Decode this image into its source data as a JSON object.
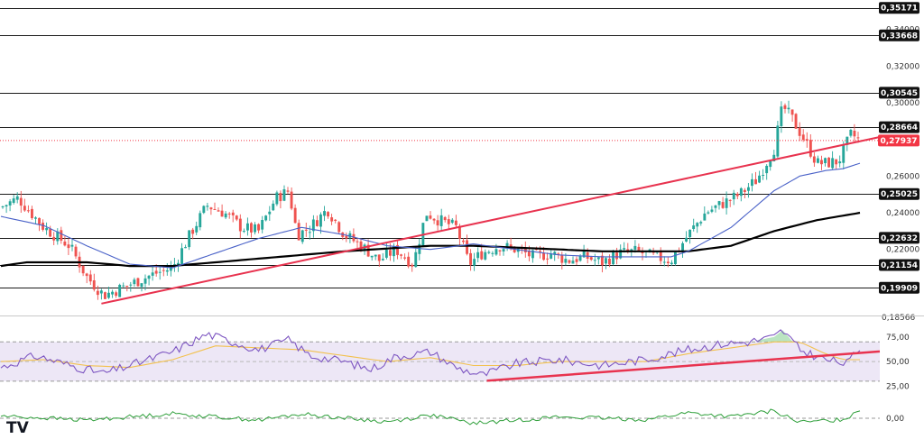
{
  "colors": {
    "bull": "#26a69a",
    "bear": "#ef5350",
    "ma_short": "#4a62c8",
    "ma_long": "#000000",
    "trendline": "#e8334f",
    "level_line": "#1a1a1a",
    "level_label_bg": "#111111",
    "current_price_bg": "#f23645",
    "rsi_line": "#7e57c2",
    "rsi_signal": "#f2c14e",
    "rsi_band": "#ede7f6",
    "momentum_line": "#2e9f3a"
  },
  "logo": {
    "icon": "tradingview-logo-icon",
    "text": "TV"
  },
  "chart_data": [
    {
      "type": "candlestick",
      "panel": "price",
      "ylim": [
        0.184,
        0.356
      ],
      "y_ticks": [
        "0,34000",
        "0,32000",
        "0,30000",
        "0,26000",
        "0,24000",
        "0,22000"
      ],
      "y_tick_values": [
        0.34,
        0.32,
        0.3,
        0.26,
        0.24,
        0.22
      ],
      "levels": [
        {
          "value": 0.35171,
          "label": "0,35171"
        },
        {
          "value": 0.33668,
          "label": "0,33668"
        },
        {
          "value": 0.30545,
          "label": "0,30545"
        },
        {
          "value": 0.28664,
          "label": "0,28664"
        },
        {
          "value": 0.25025,
          "label": "0,25025"
        },
        {
          "value": 0.22632,
          "label": "0,22632"
        },
        {
          "value": 0.21154,
          "label": "0,21154"
        },
        {
          "value": 0.19909,
          "label": "0,19909"
        }
      ],
      "partial_bottom_label": "0,18566",
      "current_price": {
        "value": 0.27937,
        "label": "0,27937"
      },
      "trendline": {
        "from": [
          0.117,
          0.1905
        ],
        "to": [
          1.0,
          0.279
        ]
      },
      "path_anchors": [
        [
          0,
          0.243
        ],
        [
          0.02,
          0.248
        ],
        [
          0.05,
          0.232
        ],
        [
          0.08,
          0.222
        ],
        [
          0.1,
          0.205
        ],
        [
          0.12,
          0.195
        ],
        [
          0.135,
          0.198
        ],
        [
          0.16,
          0.203
        ],
        [
          0.18,
          0.207
        ],
        [
          0.2,
          0.21
        ],
        [
          0.22,
          0.228
        ],
        [
          0.24,
          0.244
        ],
        [
          0.26,
          0.24
        ],
        [
          0.28,
          0.232
        ],
        [
          0.3,
          0.23
        ],
        [
          0.32,
          0.248
        ],
        [
          0.335,
          0.252
        ],
        [
          0.345,
          0.228
        ],
        [
          0.36,
          0.232
        ],
        [
          0.38,
          0.242
        ],
        [
          0.4,
          0.228
        ],
        [
          0.42,
          0.222
        ],
        [
          0.44,
          0.214
        ],
        [
          0.46,
          0.22
        ],
        [
          0.48,
          0.212
        ],
        [
          0.495,
          0.24
        ],
        [
          0.51,
          0.236
        ],
        [
          0.53,
          0.232
        ],
        [
          0.545,
          0.212
        ],
        [
          0.56,
          0.218
        ],
        [
          0.58,
          0.222
        ],
        [
          0.6,
          0.22
        ],
        [
          0.62,
          0.216
        ],
        [
          0.64,
          0.218
        ],
        [
          0.66,
          0.214
        ],
        [
          0.68,
          0.216
        ],
        [
          0.7,
          0.213
        ],
        [
          0.72,
          0.218
        ],
        [
          0.74,
          0.219
        ],
        [
          0.76,
          0.216
        ],
        [
          0.78,
          0.214
        ],
        [
          0.8,
          0.228
        ],
        [
          0.82,
          0.24
        ],
        [
          0.84,
          0.245
        ],
        [
          0.86,
          0.25
        ],
        [
          0.88,
          0.258
        ],
        [
          0.9,
          0.275
        ],
        [
          0.91,
          0.298
        ],
        [
          0.92,
          0.292
        ],
        [
          0.935,
          0.28
        ],
        [
          0.95,
          0.267
        ],
        [
          0.96,
          0.267
        ],
        [
          0.975,
          0.268
        ],
        [
          0.99,
          0.283
        ],
        [
          1.0,
          0.279
        ]
      ],
      "ma_short_anchors": [
        [
          0,
          0.238
        ],
        [
          0.05,
          0.233
        ],
        [
          0.1,
          0.222
        ],
        [
          0.15,
          0.212
        ],
        [
          0.2,
          0.21
        ],
        [
          0.25,
          0.218
        ],
        [
          0.3,
          0.226
        ],
        [
          0.35,
          0.232
        ],
        [
          0.4,
          0.228
        ],
        [
          0.45,
          0.222
        ],
        [
          0.5,
          0.22
        ],
        [
          0.55,
          0.223
        ],
        [
          0.6,
          0.22
        ],
        [
          0.65,
          0.217
        ],
        [
          0.7,
          0.216
        ],
        [
          0.75,
          0.216
        ],
        [
          0.78,
          0.216
        ],
        [
          0.8,
          0.219
        ],
        [
          0.85,
          0.232
        ],
        [
          0.9,
          0.252
        ],
        [
          0.93,
          0.26
        ],
        [
          0.96,
          0.263
        ],
        [
          0.98,
          0.264
        ],
        [
          1.0,
          0.267
        ]
      ],
      "ma_long_anchors": [
        [
          0,
          0.211
        ],
        [
          0.03,
          0.213
        ],
        [
          0.1,
          0.213
        ],
        [
          0.15,
          0.211
        ],
        [
          0.2,
          0.211
        ],
        [
          0.3,
          0.215
        ],
        [
          0.4,
          0.219
        ],
        [
          0.5,
          0.222
        ],
        [
          0.55,
          0.222
        ],
        [
          0.6,
          0.221
        ],
        [
          0.65,
          0.22
        ],
        [
          0.7,
          0.219
        ],
        [
          0.75,
          0.219
        ],
        [
          0.8,
          0.219
        ],
        [
          0.85,
          0.222
        ],
        [
          0.9,
          0.23
        ],
        [
          0.95,
          0.236
        ],
        [
          1.0,
          0.24
        ]
      ],
      "candle_count": 235
    },
    {
      "type": "line",
      "panel": "rsi",
      "ylim": [
        18,
        85
      ],
      "y_ticks": [
        "75,00",
        "50,00",
        "25,00"
      ],
      "y_tick_values": [
        75,
        50,
        25
      ],
      "band": [
        30,
        70
      ],
      "trendline": {
        "from": [
          0.5656,
          30.5
        ],
        "to": [
          1.0,
          58.8
        ]
      },
      "rsi_anchors": [
        [
          0,
          44
        ],
        [
          0.04,
          56
        ],
        [
          0.09,
          44
        ],
        [
          0.12,
          38
        ],
        [
          0.15,
          46
        ],
        [
          0.2,
          60
        ],
        [
          0.24,
          78
        ],
        [
          0.27,
          70
        ],
        [
          0.3,
          62
        ],
        [
          0.335,
          72
        ],
        [
          0.36,
          56
        ],
        [
          0.4,
          50
        ],
        [
          0.43,
          42
        ],
        [
          0.46,
          55
        ],
        [
          0.5,
          60
        ],
        [
          0.53,
          44
        ],
        [
          0.56,
          36
        ],
        [
          0.6,
          48
        ],
        [
          0.65,
          52
        ],
        [
          0.7,
          46
        ],
        [
          0.75,
          52
        ],
        [
          0.8,
          62
        ],
        [
          0.84,
          68
        ],
        [
          0.87,
          70
        ],
        [
          0.9,
          75
        ],
        [
          0.91,
          82
        ],
        [
          0.93,
          62
        ],
        [
          0.96,
          52
        ],
        [
          0.985,
          48
        ],
        [
          1.0,
          64
        ]
      ],
      "signal_anchors": [
        [
          0,
          50
        ],
        [
          0.05,
          52
        ],
        [
          0.1,
          46
        ],
        [
          0.15,
          44
        ],
        [
          0.2,
          52
        ],
        [
          0.25,
          66
        ],
        [
          0.3,
          64
        ],
        [
          0.35,
          62
        ],
        [
          0.4,
          56
        ],
        [
          0.45,
          50
        ],
        [
          0.5,
          54
        ],
        [
          0.55,
          46
        ],
        [
          0.6,
          46
        ],
        [
          0.65,
          50
        ],
        [
          0.7,
          50
        ],
        [
          0.75,
          50
        ],
        [
          0.8,
          58
        ],
        [
          0.85,
          64
        ],
        [
          0.9,
          70
        ],
        [
          0.93,
          70
        ],
        [
          0.96,
          58
        ],
        [
          0.98,
          52
        ],
        [
          1.0,
          52
        ]
      ]
    },
    {
      "type": "line",
      "panel": "momentum",
      "ylim": [
        -0.0035,
        0.0035
      ],
      "y_ticks": [
        "0,00"
      ],
      "y_tick_values": [
        0.0
      ],
      "momentum_anchors": [
        [
          0,
          0.0005
        ],
        [
          0.1,
          -0.0004
        ],
        [
          0.2,
          0.001
        ],
        [
          0.3,
          -0.0004
        ],
        [
          0.35,
          0.0009
        ],
        [
          0.45,
          -0.0008
        ],
        [
          0.5,
          0.0007
        ],
        [
          0.55,
          -0.0011
        ],
        [
          0.65,
          0.0003
        ],
        [
          0.75,
          -0.0003
        ],
        [
          0.8,
          0.0012
        ],
        [
          0.85,
          0.0003
        ],
        [
          0.9,
          0.0016
        ],
        [
          0.93,
          -0.0009
        ],
        [
          0.98,
          -0.0003
        ],
        [
          1.0,
          0.0018
        ]
      ]
    }
  ]
}
